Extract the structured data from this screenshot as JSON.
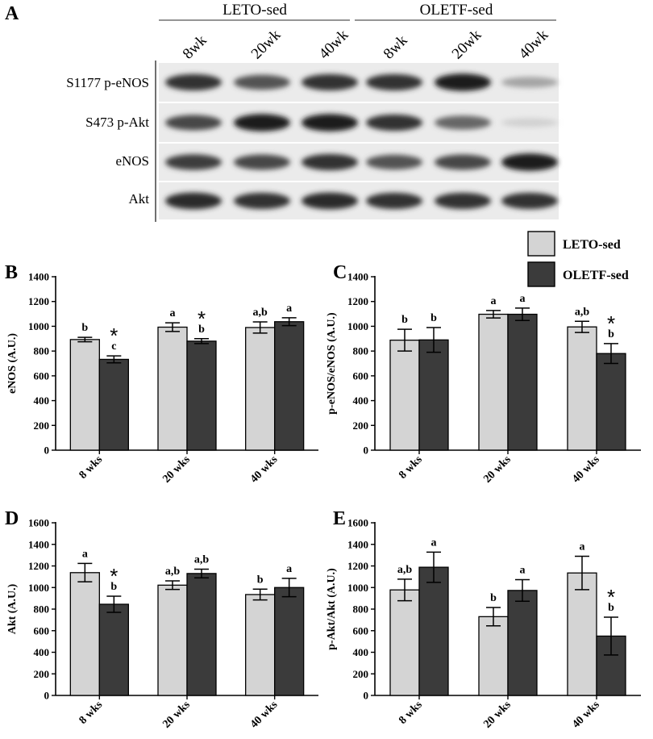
{
  "panel_a": {
    "label": "A",
    "groups": [
      "LETO-sed",
      "OLETF-sed"
    ],
    "lanes": [
      "8wk",
      "20wk",
      "40wk",
      "8wk",
      "20wk",
      "40wk"
    ],
    "rows": [
      {
        "name": "S1177 p-eNOS",
        "intensities": [
          0.85,
          0.7,
          0.85,
          0.85,
          0.95,
          0.3
        ]
      },
      {
        "name": "S473 p-Akt",
        "intensities": [
          0.75,
          0.95,
          0.95,
          0.85,
          0.6,
          0.08
        ]
      },
      {
        "name": "eNOS",
        "intensities": [
          0.8,
          0.75,
          0.85,
          0.7,
          0.75,
          0.95
        ]
      },
      {
        "name": "Akt",
        "intensities": [
          0.9,
          0.85,
          0.9,
          0.85,
          0.85,
          0.85
        ]
      }
    ]
  },
  "legend": [
    "LETO-sed",
    "OLETF-sed"
  ],
  "colors": {
    "leto": "#d4d4d4",
    "oletf": "#3b3b3b",
    "axis": "#000000"
  },
  "chart_data": [
    {
      "panel": "B",
      "type": "bar",
      "ylabel": "eNOS (A.U.)",
      "categories": [
        "8 wks",
        "20 wks",
        "40 wks"
      ],
      "ylim": [
        0,
        1400
      ],
      "yticks": [
        0,
        200,
        400,
        600,
        800,
        1000,
        1200,
        1400
      ],
      "series": [
        {
          "name": "LETO-sed",
          "values": [
            893,
            993,
            990
          ],
          "errors": [
            18,
            35,
            45
          ],
          "labels": [
            "b",
            "a",
            "a,b"
          ],
          "star": [
            false,
            false,
            false
          ]
        },
        {
          "name": "OLETF-sed",
          "values": [
            733,
            880,
            1037
          ],
          "errors": [
            28,
            20,
            32
          ],
          "labels": [
            "c",
            "b",
            "a"
          ],
          "star": [
            true,
            true,
            false
          ]
        }
      ]
    },
    {
      "panel": "C",
      "type": "bar",
      "ylabel": "p-eNOS/eNOS (A.U.)",
      "categories": [
        "8 wks",
        "20 wks",
        "40 wks"
      ],
      "ylim": [
        0,
        1400
      ],
      "yticks": [
        0,
        200,
        400,
        600,
        800,
        1000,
        1200,
        1400
      ],
      "series": [
        {
          "name": "LETO-sed",
          "values": [
            888,
            1097,
            995
          ],
          "errors": [
            88,
            30,
            45
          ],
          "labels": [
            "b",
            "a",
            "a,b"
          ],
          "star": [
            false,
            false,
            false
          ]
        },
        {
          "name": "OLETF-sed",
          "values": [
            890,
            1097,
            780
          ],
          "errors": [
            100,
            50,
            80
          ],
          "labels": [
            "b",
            "a",
            "b"
          ],
          "star": [
            false,
            false,
            true
          ]
        }
      ]
    },
    {
      "panel": "D",
      "type": "bar",
      "ylabel": "Akt (A.U.)",
      "categories": [
        "8 wks",
        "20 wks",
        "40 wks"
      ],
      "ylim": [
        0,
        1600
      ],
      "yticks": [
        0,
        200,
        400,
        600,
        800,
        1000,
        1200,
        1400,
        1600
      ],
      "series": [
        {
          "name": "LETO-sed",
          "values": [
            1138,
            1022,
            935
          ],
          "errors": [
            85,
            40,
            50
          ],
          "labels": [
            "a",
            "a,b",
            "b"
          ],
          "star": [
            false,
            false,
            false
          ]
        },
        {
          "name": "OLETF-sed",
          "values": [
            845,
            1130,
            1000
          ],
          "errors": [
            75,
            40,
            85
          ],
          "labels": [
            "b",
            "a,b",
            "a"
          ],
          "star": [
            true,
            false,
            false
          ]
        }
      ]
    },
    {
      "panel": "E",
      "type": "bar",
      "ylabel": "p-Akt/Akt (A.U.)",
      "categories": [
        "8 wks",
        "20 wks",
        "40 wks"
      ],
      "ylim": [
        0,
        1600
      ],
      "yticks": [
        0,
        200,
        400,
        600,
        800,
        1000,
        1200,
        1400,
        1600
      ],
      "series": [
        {
          "name": "LETO-sed",
          "values": [
            978,
            730,
            1135
          ],
          "errors": [
            100,
            85,
            155
          ],
          "labels": [
            "a,b",
            "b",
            "a"
          ],
          "star": [
            false,
            false,
            false
          ]
        },
        {
          "name": "OLETF-sed",
          "values": [
            1188,
            973,
            550
          ],
          "errors": [
            140,
            100,
            175
          ],
          "labels": [
            "a",
            "a",
            "b"
          ],
          "star": [
            false,
            false,
            true
          ]
        }
      ]
    }
  ]
}
